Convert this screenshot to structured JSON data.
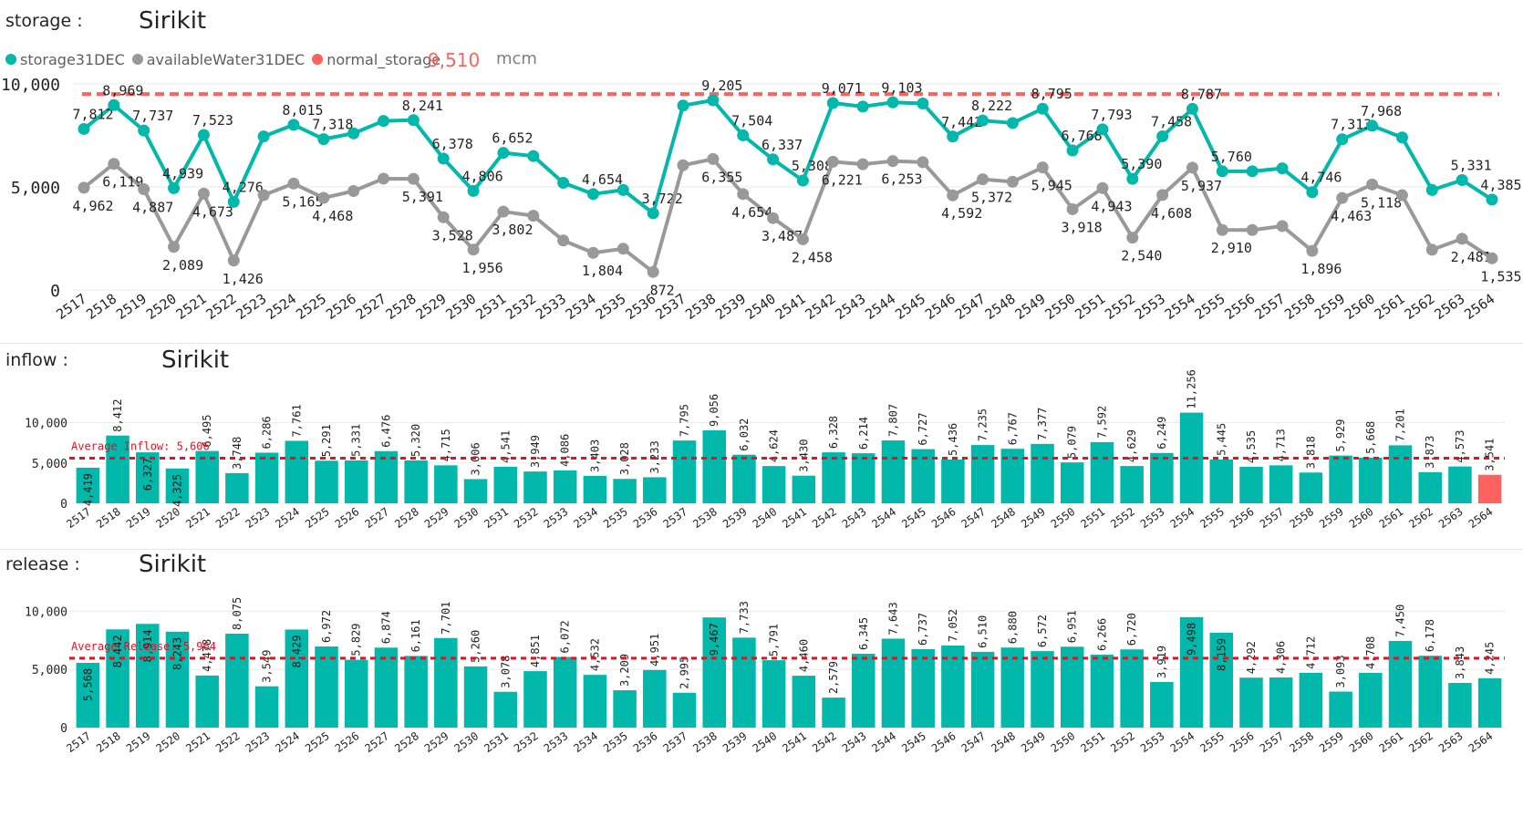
{
  "storage_panel": {
    "label": "storage :",
    "title": "Sirikit",
    "legend": [
      {
        "name": "storage31DEC",
        "color": "#01b8aa"
      },
      {
        "name": "availableWater31DEC",
        "color": "#999999"
      },
      {
        "name": "normal_storage",
        "color": "#fd625e"
      }
    ],
    "normal_value": "9,510",
    "unit": "mcm"
  },
  "inflow_panel": {
    "label": "inflow :",
    "title": "Sirikit"
  },
  "release_panel": {
    "label": "release :",
    "title": "Sirikit"
  },
  "chart_data": [
    {
      "type": "line",
      "title": "Sirikit",
      "x": [
        "2517",
        "2518",
        "2519",
        "2520",
        "2521",
        "2522",
        "2523",
        "2524",
        "2525",
        "2526",
        "2527",
        "2528",
        "2529",
        "2530",
        "2531",
        "2532",
        "2533",
        "2534",
        "2535",
        "2536",
        "2537",
        "2538",
        "2539",
        "2540",
        "2541",
        "2542",
        "2543",
        "2544",
        "2545",
        "2546",
        "2547",
        "2548",
        "2549",
        "2550",
        "2551",
        "2552",
        "2553",
        "2554",
        "2555",
        "2556",
        "2557",
        "2558",
        "2559",
        "2560",
        "2561",
        "2562",
        "2563",
        "2564"
      ],
      "series": [
        {
          "name": "storage31DEC",
          "color": "#01b8aa",
          "values": [
            7812,
            8969,
            7737,
            4939,
            7523,
            4276,
            7450,
            8015,
            7318,
            7600,
            8200,
            8241,
            6378,
            4806,
            6652,
            6500,
            5200,
            4654,
            4850,
            3722,
            8950,
            9205,
            7504,
            6337,
            5308,
            9071,
            8900,
            9103,
            9050,
            7442,
            8222,
            8100,
            8795,
            6768,
            7793,
            5390,
            7458,
            8787,
            5760,
            5760,
            5900,
            4746,
            7313,
            7968,
            7400,
            4850,
            5331,
            4385
          ],
          "labels": [
            "7,812",
            "8,969",
            "7,737",
            "4,939",
            "7,523",
            "4,276",
            "",
            "8,015",
            "7,318",
            "",
            "",
            "8,241",
            "6,378",
            "4,806",
            "6,652",
            "",
            "",
            "4,654",
            "",
            "3,722",
            "",
            "9,205",
            "7,504",
            "6,337",
            "5,308",
            "9,071",
            "",
            "9,103",
            "",
            "7,442",
            "8,222",
            "",
            "8,795",
            "6,768",
            "7,793",
            "5,390",
            "7,458",
            "8,787",
            "5,760",
            "",
            "",
            "4,746",
            "7,313",
            "7,968",
            "",
            "",
            "5,331",
            "4,385"
          ]
        },
        {
          "name": "availableWater31DEC",
          "color": "#999999",
          "values": [
            4962,
            6119,
            4887,
            2089,
            4673,
            1426,
            4600,
            5165,
            4468,
            4800,
            5400,
            5391,
            3528,
            1956,
            3802,
            3600,
            2400,
            1804,
            2000,
            872,
            6050,
            6355,
            4654,
            3487,
            2458,
            6221,
            6100,
            6253,
            6200,
            4592,
            5372,
            5250,
            5945,
            3918,
            4943,
            2540,
            4608,
            5937,
            2910,
            2910,
            3100,
            1896,
            4463,
            5118,
            4600,
            1950,
            2481,
            1535
          ],
          "labels": [
            "4,962",
            "6,119",
            "4,887",
            "2,089",
            "4,673",
            "1,426",
            "",
            "5,165",
            "4,468",
            "",
            "",
            "5,391",
            "3,528",
            "1,956",
            "3,802",
            "",
            "",
            "1,804",
            "",
            "872",
            "",
            "6,355",
            "4,654",
            "3,487",
            "2,458",
            "6,221",
            "",
            "6,253",
            "",
            "4,592",
            "5,372",
            "",
            "5,945",
            "3,918",
            "4,943",
            "2,540",
            "4,608",
            "5,937",
            "2,910",
            "",
            "",
            "1,896",
            "4,463",
            "5,118",
            "",
            "",
            "2,481",
            "1,535"
          ]
        }
      ],
      "reference_line": {
        "name": "normal_storage",
        "value": 9510,
        "color": "#fd625e"
      },
      "yticks": [
        "0",
        "5,000",
        "10,000"
      ],
      "ylim": [
        0,
        10000
      ]
    },
    {
      "type": "bar",
      "title": "Sirikit",
      "categories": [
        "2517",
        "2518",
        "2519",
        "2520",
        "2521",
        "2522",
        "2523",
        "2524",
        "2525",
        "2526",
        "2527",
        "2528",
        "2529",
        "2530",
        "2531",
        "2532",
        "2533",
        "2534",
        "2535",
        "2536",
        "2537",
        "2538",
        "2539",
        "2540",
        "2541",
        "2542",
        "2543",
        "2544",
        "2545",
        "2546",
        "2547",
        "2548",
        "2549",
        "2550",
        "2551",
        "2552",
        "2553",
        "2554",
        "2555",
        "2556",
        "2557",
        "2558",
        "2559",
        "2560",
        "2561",
        "2562",
        "2563",
        "2564"
      ],
      "values": [
        4419,
        8412,
        6327,
        4325,
        6495,
        3748,
        6286,
        7761,
        5291,
        5331,
        6476,
        5320,
        4715,
        3006,
        4541,
        3949,
        4086,
        3403,
        3028,
        3233,
        7795,
        9056,
        6032,
        4624,
        3430,
        6328,
        6214,
        7807,
        6727,
        5436,
        7235,
        6767,
        7377,
        5079,
        7592,
        4629,
        6249,
        11256,
        5445,
        4535,
        4713,
        3818,
        5929,
        5668,
        7201,
        3873,
        4573,
        3541
      ],
      "labels": [
        "4,419",
        "8,412",
        "6,327",
        "4,325",
        "6,495",
        "3,748",
        "6,286",
        "7,761",
        "5,291",
        "5,331",
        "6,476",
        "5,320",
        "4,715",
        "3,006",
        "4,541",
        "3,949",
        "4,086",
        "3,403",
        "3,028",
        "3,233",
        "7,795",
        "9,056",
        "6,032",
        "4,624",
        "3,430",
        "6,328",
        "6,214",
        "7,807",
        "6,727",
        "5,436",
        "7,235",
        "6,767",
        "7,377",
        "5,079",
        "7,592",
        "4,629",
        "6,249",
        "11,256",
        "5,445",
        "4,535",
        "4,713",
        "3,818",
        "5,929",
        "5,668",
        "7,201",
        "3,873",
        "4,573",
        "3,541"
      ],
      "color": "#01b8aa",
      "highlight_color": "#fd625e",
      "highlight_index": 47,
      "average": {
        "label": "Average Inflow: 5,606",
        "value": 5606,
        "color": "#e81123"
      },
      "yticks": [
        "0",
        "5,000",
        "10,000"
      ],
      "ylim": [
        0,
        12000
      ]
    },
    {
      "type": "bar",
      "title": "Sirikit",
      "categories": [
        "2517",
        "2518",
        "2519",
        "2520",
        "2521",
        "2522",
        "2523",
        "2524",
        "2525",
        "2526",
        "2527",
        "2528",
        "2529",
        "2530",
        "2531",
        "2532",
        "2533",
        "2534",
        "2535",
        "2536",
        "2537",
        "2538",
        "2539",
        "2540",
        "2541",
        "2542",
        "2543",
        "2544",
        "2545",
        "2546",
        "2547",
        "2548",
        "2549",
        "2550",
        "2551",
        "2552",
        "2553",
        "2554",
        "2555",
        "2556",
        "2557",
        "2558",
        "2559",
        "2560",
        "2561",
        "2562",
        "2563",
        "2564"
      ],
      "values": [
        5568,
        8442,
        8914,
        8243,
        4478,
        8075,
        3549,
        8429,
        6972,
        5829,
        6874,
        6161,
        7701,
        5260,
        3078,
        4851,
        6072,
        4532,
        3209,
        4951,
        2995,
        9467,
        7733,
        5791,
        4460,
        2579,
        6345,
        7643,
        6737,
        7052,
        6510,
        6880,
        6572,
        6951,
        6266,
        6720,
        3919,
        9498,
        8159,
        4292,
        4306,
        4712,
        3093,
        4708,
        7450,
        6178,
        3843,
        4245
      ],
      "labels": [
        "5,568",
        "8,442",
        "8,914",
        "8,243",
        "4,478",
        "8,075",
        "3,549",
        "8,429",
        "6,972",
        "5,829",
        "6,874",
        "6,161",
        "7,701",
        "5,260",
        "3,078",
        "4,851",
        "6,072",
        "4,532",
        "3,209",
        "4,951",
        "2,995",
        "9,467",
        "7,733",
        "5,791",
        "4,460",
        "2,579",
        "6,345",
        "7,643",
        "6,737",
        "7,052",
        "6,510",
        "6,880",
        "6,572",
        "6,951",
        "6,266",
        "6,720",
        "3,919",
        "9,498",
        "8,159",
        "4,292",
        "4,306",
        "4,712",
        "3,093",
        "4,708",
        "7,450",
        "6,178",
        "3,843",
        "4,245"
      ],
      "color": "#01b8aa",
      "average": {
        "label": "Average Release: 5,964",
        "value": 5964,
        "color": "#e81123"
      },
      "yticks": [
        "0",
        "5,000",
        "10,000"
      ],
      "ylim": [
        0,
        10500
      ]
    }
  ]
}
